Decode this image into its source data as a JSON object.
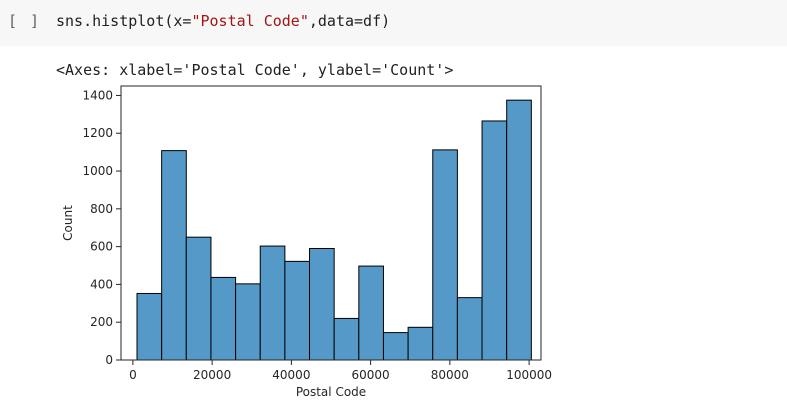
{
  "cell": {
    "run_indicator": "[ ]",
    "code_prefix": "sns.histplot(x=",
    "code_string": "\"Postal Code\"",
    "code_suffix": ",data=df)",
    "output_text": "<Axes: xlabel='Postal Code', ylabel='Count'>"
  },
  "chart_data": {
    "type": "bar",
    "xlabel": "Postal Code",
    "ylabel": "Count",
    "xlim": [
      -3000,
      103000
    ],
    "ylim": [
      0,
      1450
    ],
    "bar_color": "#5499c7",
    "bar_edge_color": "#000000",
    "x_ticks": [
      0,
      20000,
      40000,
      60000,
      80000,
      100000
    ],
    "y_ticks": [
      0,
      200,
      400,
      600,
      800,
      1000,
      1200,
      1400
    ],
    "bin_edges": [
      1040,
      7260,
      13480,
      19700,
      25920,
      32140,
      38360,
      44580,
      50800,
      57020,
      63240,
      69460,
      75680,
      81900,
      88120,
      94340,
      100560
    ],
    "counts": [
      352,
      1108,
      650,
      437,
      403,
      603,
      522,
      590,
      220,
      497,
      145,
      173,
      1112,
      330,
      1265,
      1375
    ]
  }
}
